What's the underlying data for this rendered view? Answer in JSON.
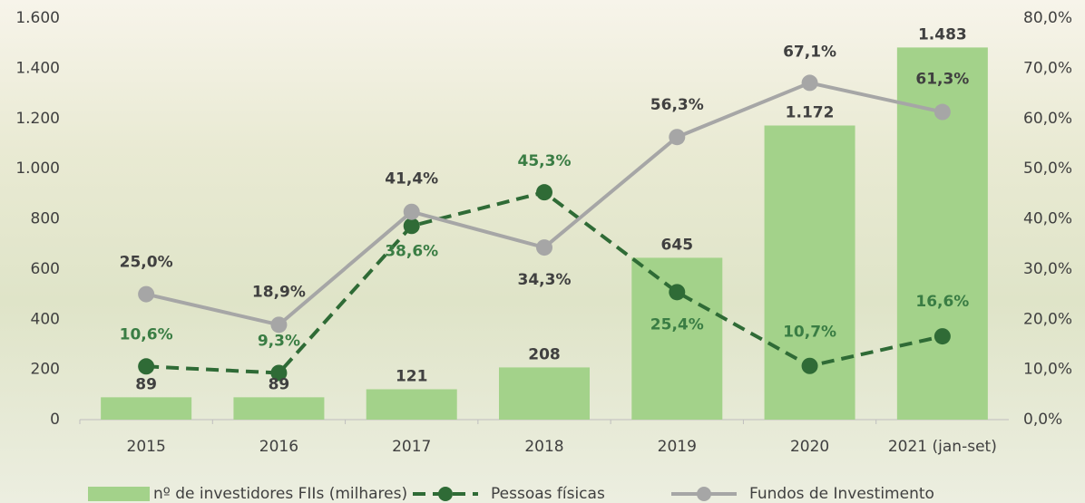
{
  "chart_data": {
    "type": "bar-line",
    "categories": [
      "2015",
      "2016",
      "2017",
      "2018",
      "2019",
      "2020",
      "2021 (jan-set)"
    ],
    "series": [
      {
        "name": "nº de investidores FIIs (milhares)",
        "type": "bar",
        "color": "#a3d28a",
        "values": [
          89,
          89,
          121,
          208,
          645,
          1172,
          1483
        ],
        "value_labels": [
          "89",
          "89",
          "121",
          "208",
          "645",
          "1.172",
          "1.483"
        ]
      },
      {
        "name": "Pessoas físicas",
        "type": "line",
        "axis": "y2",
        "color": "#2f6b36",
        "dashed": true,
        "values": [
          10.6,
          9.3,
          38.6,
          45.3,
          25.4,
          10.7,
          16.6
        ],
        "value_labels": [
          "10,6%",
          "9,3%",
          "38,6%",
          "45,3%",
          "25,4%",
          "10,7%",
          "16,6%"
        ]
      },
      {
        "name": "Fundos de Investimento",
        "type": "line",
        "axis": "y2",
        "color": "#a6a6a6",
        "dashed": false,
        "values": [
          25.0,
          18.9,
          41.4,
          34.3,
          56.3,
          67.1,
          61.3
        ],
        "value_labels": [
          "25,0%",
          "18,9%",
          "41,4%",
          "34,3%",
          "56,3%",
          "67,1%",
          "61,3%"
        ]
      }
    ],
    "ylim": [
      0,
      1600
    ],
    "yticks": [
      0,
      200,
      400,
      600,
      800,
      {
        "value": 1000,
        "label": "1.000"
      },
      {
        "value": 1200,
        "label": "1.200"
      },
      {
        "value": 1400,
        "label": "1.400"
      },
      {
        "value": 1600,
        "label": "1.600"
      }
    ],
    "y2lim": [
      0,
      80
    ],
    "y2ticks": [
      {
        "value": 0,
        "label": "0,0%"
      },
      {
        "value": 10,
        "label": "10,0%"
      },
      {
        "value": 20,
        "label": "20,0%"
      },
      {
        "value": 30,
        "label": "30,0%"
      },
      {
        "value": 40,
        "label": "40,0%"
      },
      {
        "value": 50,
        "label": "50,0%"
      },
      {
        "value": 60,
        "label": "60,0%"
      },
      {
        "value": 70,
        "label": "70,0%"
      },
      {
        "value": 80,
        "label": "80,0%"
      }
    ],
    "legend": "bottom"
  }
}
